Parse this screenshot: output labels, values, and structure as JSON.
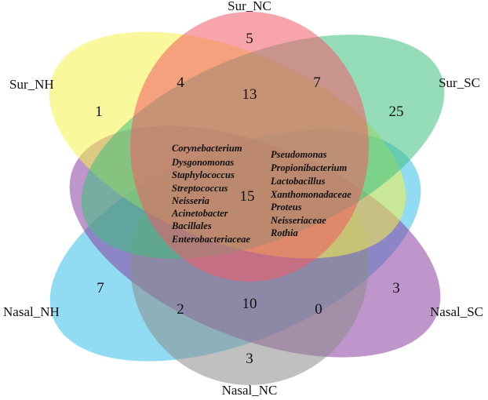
{
  "diagram": {
    "type": "venn-4",
    "sets": [
      {
        "id": "sur_nc",
        "label": "Sur_NC",
        "color": "#f25a66"
      },
      {
        "id": "sur_nh",
        "label": "Sur_NH",
        "color": "#f6f24a"
      },
      {
        "id": "sur_sc",
        "label": "Sur_SC",
        "color": "#3ebf7d"
      },
      {
        "id": "nasal_nh",
        "label": "Nasal_NH",
        "color": "#36bdea"
      },
      {
        "id": "nasal_sc",
        "label": "Nasal_SC",
        "color": "#8a3fa0"
      },
      {
        "id": "nasal_nc",
        "label": "Nasal_NC",
        "color": "#8c8c8c"
      }
    ],
    "counts": {
      "sur_nc_only": "5",
      "sur_nh_only": "1",
      "sur_sc_only": "25",
      "nasal_nh_only": "7",
      "nasal_sc_only": "3",
      "nasal_nc_only": "3",
      "sur_nh_sur_nc": "4",
      "sur_all_three": "13",
      "sur_nc_sur_sc": "7",
      "core": "15",
      "nasal_nh_nasal_nc": "2",
      "nasal_all_three": "10",
      "nasal_nc_nasal_sc": "0"
    },
    "core_taxa_left": [
      "Corynebacterium",
      "Dysgonomonas",
      "Staphylococcus",
      "Streptococcus",
      "Neisseria",
      "Acinetobacter",
      "Bacillales",
      "Enterobacteriaceae"
    ],
    "core_taxa_right": [
      "Pseudomonas",
      "Propionibacterium",
      "Lactobacillus",
      "Xanthomonadaceae",
      "Proteus",
      "Neisseriaceae",
      "Rothia"
    ]
  }
}
